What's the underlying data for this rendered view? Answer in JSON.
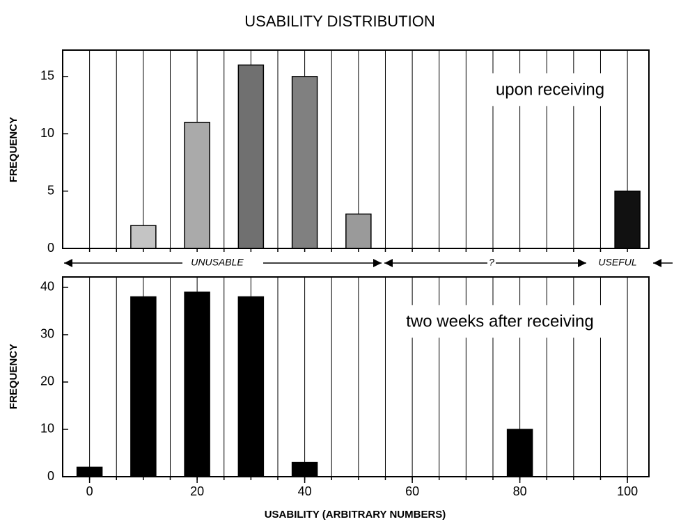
{
  "chart_data": [
    {
      "type": "bar",
      "title": "USABILITY DISTRIBUTION",
      "label": "upon receiving",
      "ylabel": "FREQUENCY",
      "x": [
        10,
        20,
        30,
        40,
        50,
        100
      ],
      "values": [
        2,
        11,
        16,
        15,
        3,
        5
      ],
      "colors": [
        "#c4c4c4",
        "#aaaaaa",
        "#707070",
        "#808080",
        "#9a9a9a",
        "#111111"
      ],
      "xlim": [
        -5,
        104
      ],
      "xgrid": [
        0,
        5,
        10,
        15,
        20,
        25,
        30,
        35,
        40,
        45,
        50,
        55,
        60,
        65,
        70,
        75,
        80,
        85,
        90,
        95,
        100
      ],
      "ylim": [
        0,
        17.3
      ],
      "yticks": [
        0,
        5,
        10,
        15
      ],
      "annotations": [
        "UNUSABLE",
        "?",
        "USEFUL"
      ]
    },
    {
      "type": "bar",
      "label": "two weeks after receiving",
      "ylabel": "FREQUENCY",
      "xlabel": "USABILITY (ARBITRARY NUMBERS)",
      "x": [
        0,
        10,
        20,
        30,
        40,
        80
      ],
      "values": [
        2,
        38,
        39,
        38,
        3,
        10
      ],
      "color": "#000000",
      "xlim": [
        -5,
        104
      ],
      "xticks": [
        0,
        20,
        40,
        60,
        80,
        100
      ],
      "xgrid": [
        0,
        5,
        10,
        15,
        20,
        25,
        30,
        35,
        40,
        45,
        50,
        55,
        60,
        65,
        70,
        75,
        80,
        85,
        90,
        95,
        100
      ],
      "ylim": [
        0,
        42.2
      ],
      "yticks": [
        0,
        10,
        20,
        30,
        40
      ]
    }
  ]
}
